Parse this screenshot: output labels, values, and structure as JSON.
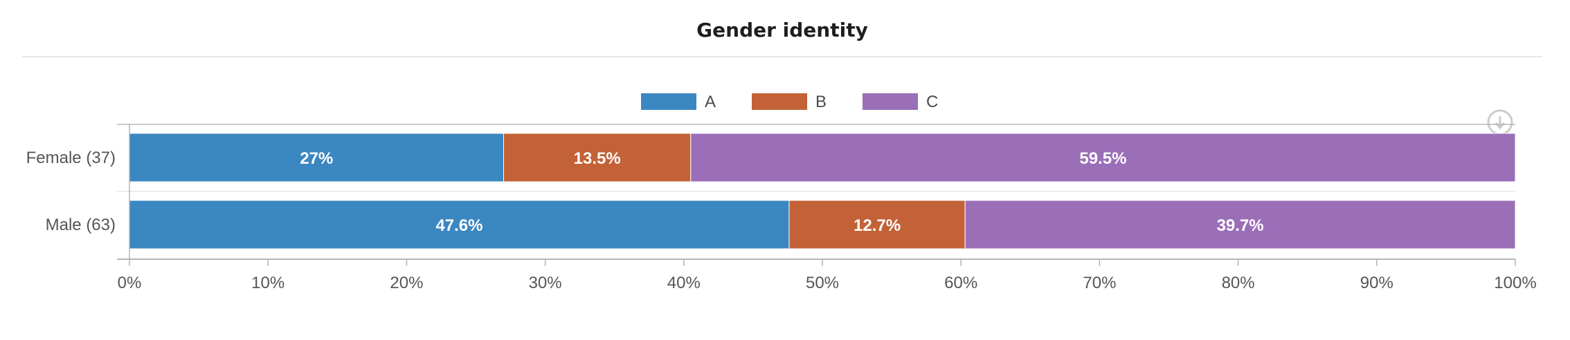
{
  "chart_data": {
    "type": "bar",
    "orientation": "horizontal",
    "stacked": "percent",
    "title": "Gender identity",
    "xlabel": "",
    "ylabel": "",
    "xlim": [
      0,
      100
    ],
    "x_ticks": [
      "0%",
      "10%",
      "20%",
      "30%",
      "40%",
      "50%",
      "60%",
      "70%",
      "80%",
      "90%",
      "100%"
    ],
    "categories": [
      "Female (37)",
      "Male (63)"
    ],
    "series": [
      {
        "name": "A",
        "color": "#3b87c1",
        "values": [
          27,
          47.6
        ],
        "labels": [
          "27%",
          "47.6%"
        ]
      },
      {
        "name": "B",
        "color": "#c26236",
        "values": [
          13.5,
          12.7
        ],
        "labels": [
          "13.5%",
          "12.7%"
        ]
      },
      {
        "name": "C",
        "color": "#9b6eb8",
        "values": [
          59.5,
          39.7
        ],
        "labels": [
          "59.5%",
          "39.7%"
        ]
      }
    ],
    "legend_position": "top-center",
    "grid": false
  },
  "icons": {
    "download": "download-icon"
  }
}
